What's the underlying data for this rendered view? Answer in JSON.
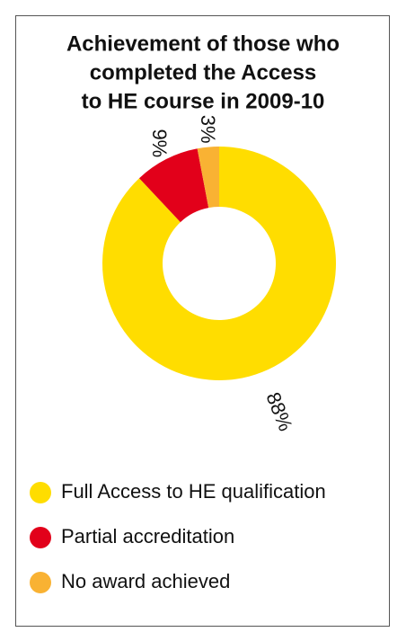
{
  "chart_data": {
    "type": "donut",
    "title": [
      "Achievement of those who",
      "completed the Access",
      "to HE course in 2009-10"
    ],
    "categories": [
      "Full Access to HE qualification",
      "Partial accreditation",
      "No award achieved"
    ],
    "values": [
      88,
      9,
      3
    ],
    "value_labels": [
      "88%",
      "9%",
      "3%"
    ],
    "colors": [
      "#ffdd00",
      "#e2001a",
      "#f9b233"
    ]
  }
}
